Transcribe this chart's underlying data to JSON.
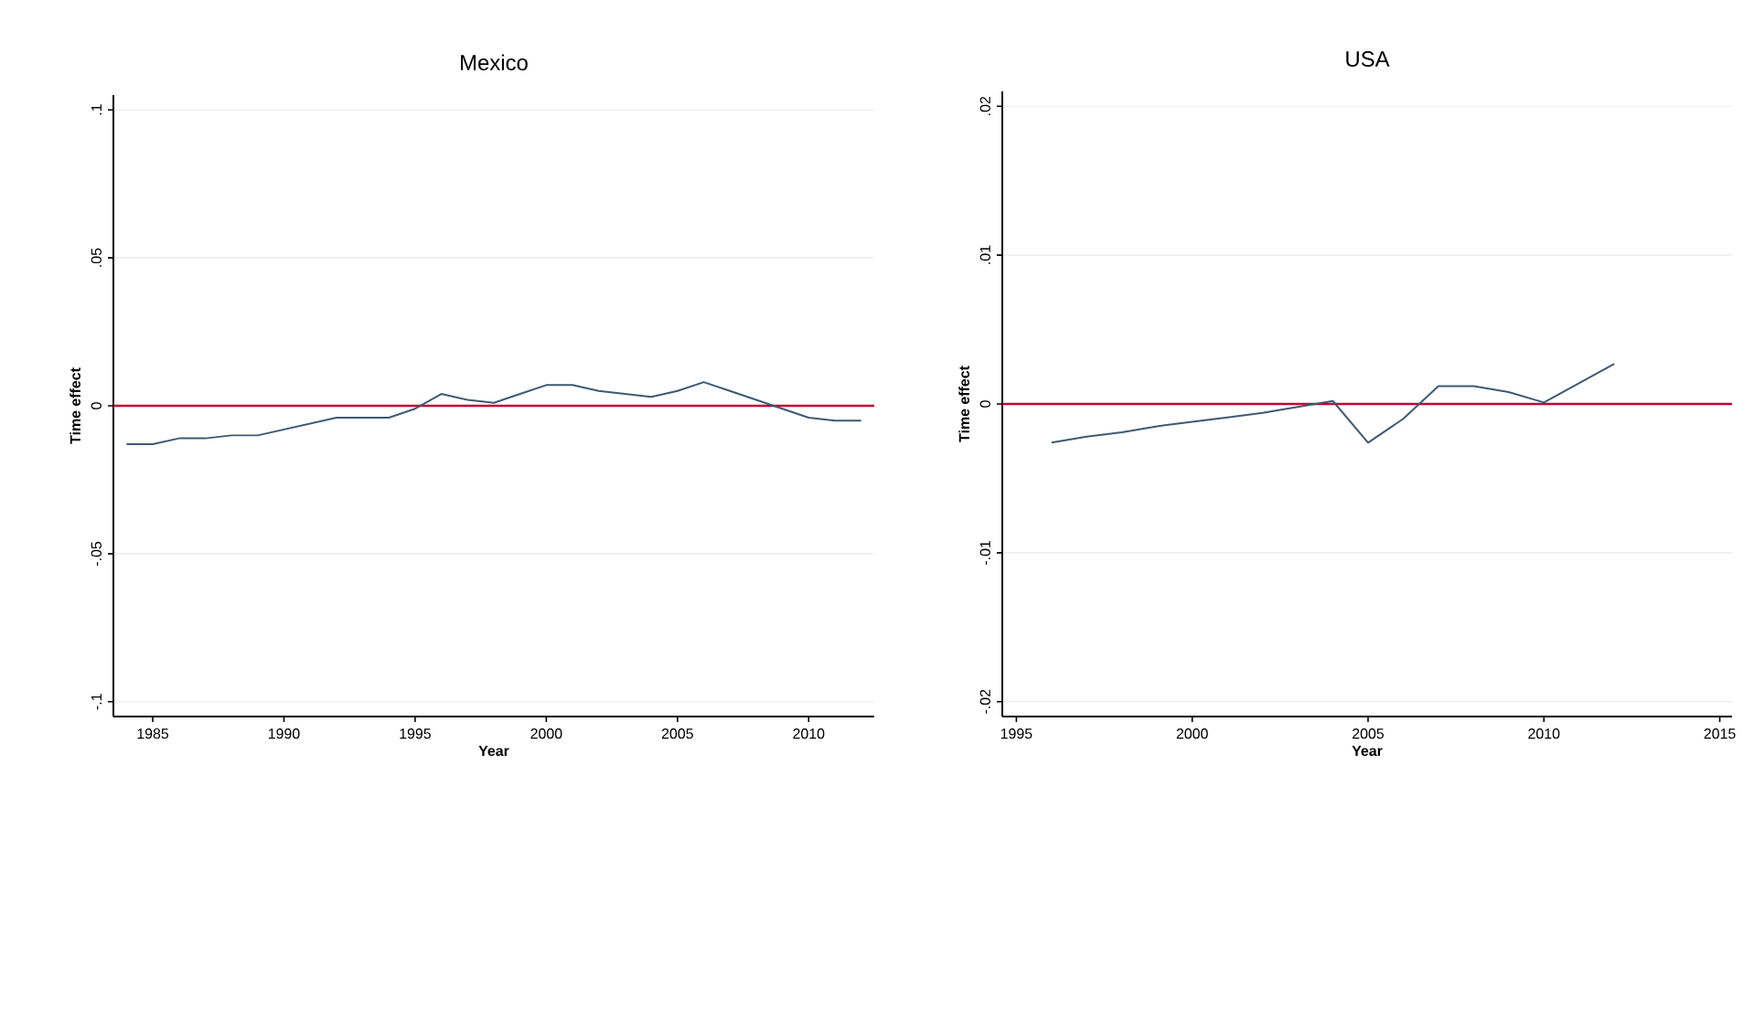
{
  "chart_data": [
    {
      "type": "line",
      "title": "Mexico",
      "xlabel": "Year",
      "ylabel": "Time effect",
      "x": [
        1984,
        1985,
        1986,
        1987,
        1988,
        1989,
        1990,
        1991,
        1992,
        1993,
        1994,
        1995,
        1996,
        1997,
        1998,
        1999,
        2000,
        2001,
        2002,
        2003,
        2004,
        2005,
        2006,
        2007,
        2008,
        2009,
        2010,
        2011,
        2012
      ],
      "series": [
        {
          "color": "#3d5a73",
          "values": [
            -0.013,
            -0.013,
            -0.011,
            -0.011,
            -0.01,
            -0.01,
            -0.008,
            -0.006,
            -0.004,
            -0.004,
            -0.004,
            -0.001,
            0.004,
            0.002,
            0.001,
            0.004,
            0.007,
            0.007,
            0.005,
            0.004,
            0.003,
            0.005,
            0.008,
            0.005,
            0.002,
            -0.001,
            -0.004,
            -0.005,
            -0.005
          ]
        }
      ],
      "xlim": [
        1983.5,
        2012.5
      ],
      "xticks": [
        1985,
        1990,
        1995,
        2000,
        2005,
        2010
      ],
      "ylim": [
        -0.105,
        0.105
      ],
      "yticks": [
        {
          "value": -0.1,
          "label": "-.1"
        },
        {
          "value": -0.05,
          "label": "-.05"
        },
        0,
        {
          "value": 0.05,
          "label": ".05"
        },
        {
          "value": 0.1,
          "label": ".1"
        }
      ],
      "grid": "y",
      "ref_lines": [
        {
          "axis": "y",
          "value": 0,
          "color": "#c10534"
        }
      ]
    },
    {
      "type": "line",
      "title": "USA",
      "xlabel": "Year",
      "ylabel": "Time effect",
      "x": [
        1996,
        1997,
        1998,
        1999,
        2000,
        2001,
        2002,
        2003,
        2004,
        2005,
        2006,
        2007,
        2008,
        2009,
        2010,
        2011,
        2012
      ],
      "series": [
        {
          "color": "#3d5a73",
          "values": [
            -0.0026,
            -0.0022,
            -0.0019,
            -0.0015,
            -0.0012,
            -0.0009,
            -0.0006,
            -0.0002,
            0.0002,
            -0.0026,
            -0.001,
            0.0012,
            0.0012,
            0.0008,
            0.0001,
            0.0014,
            0.0027
          ]
        }
      ],
      "xlim": [
        1994.6,
        2015.35
      ],
      "xticks": [
        1995,
        2000,
        2005,
        2010,
        2015
      ],
      "ylim": [
        -0.021,
        0.021
      ],
      "yticks": [
        {
          "value": -0.02,
          "label": "-.02"
        },
        {
          "value": -0.01,
          "label": "-.01"
        },
        0,
        {
          "value": 0.01,
          "label": ".01"
        },
        {
          "value": 0.02,
          "label": ".02"
        }
      ],
      "grid": "y",
      "ref_lines": [
        {
          "axis": "y",
          "value": 0,
          "color": "#c10534"
        }
      ]
    }
  ]
}
